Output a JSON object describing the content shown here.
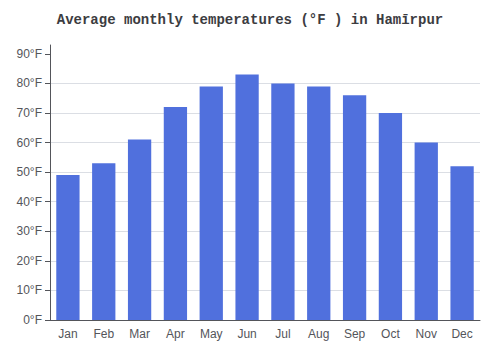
{
  "chart_data": {
    "type": "bar",
    "title": "Average monthly temperatures (°F ) in Hamīrpur",
    "categories": [
      "Jan",
      "Feb",
      "Mar",
      "Apr",
      "May",
      "Jun",
      "Jul",
      "Aug",
      "Sep",
      "Oct",
      "Nov",
      "Dec"
    ],
    "values": [
      49,
      53,
      61,
      72,
      79,
      83,
      80,
      79,
      76,
      70,
      60,
      52
    ],
    "ylim": [
      0,
      93
    ],
    "yticks": [
      {
        "value": 0,
        "label": "0°F"
      },
      {
        "value": 10,
        "label": "10°F"
      },
      {
        "value": 20,
        "label": "20°F"
      },
      {
        "value": 30,
        "label": "30°F"
      },
      {
        "value": 40,
        "label": "40°F"
      },
      {
        "value": 50,
        "label": "50°F"
      },
      {
        "value": 60,
        "label": "60°F"
      },
      {
        "value": 70,
        "label": "70°F"
      },
      {
        "value": 80,
        "label": "80°F"
      },
      {
        "value": 90,
        "label": "90°F"
      }
    ],
    "grid": true
  }
}
